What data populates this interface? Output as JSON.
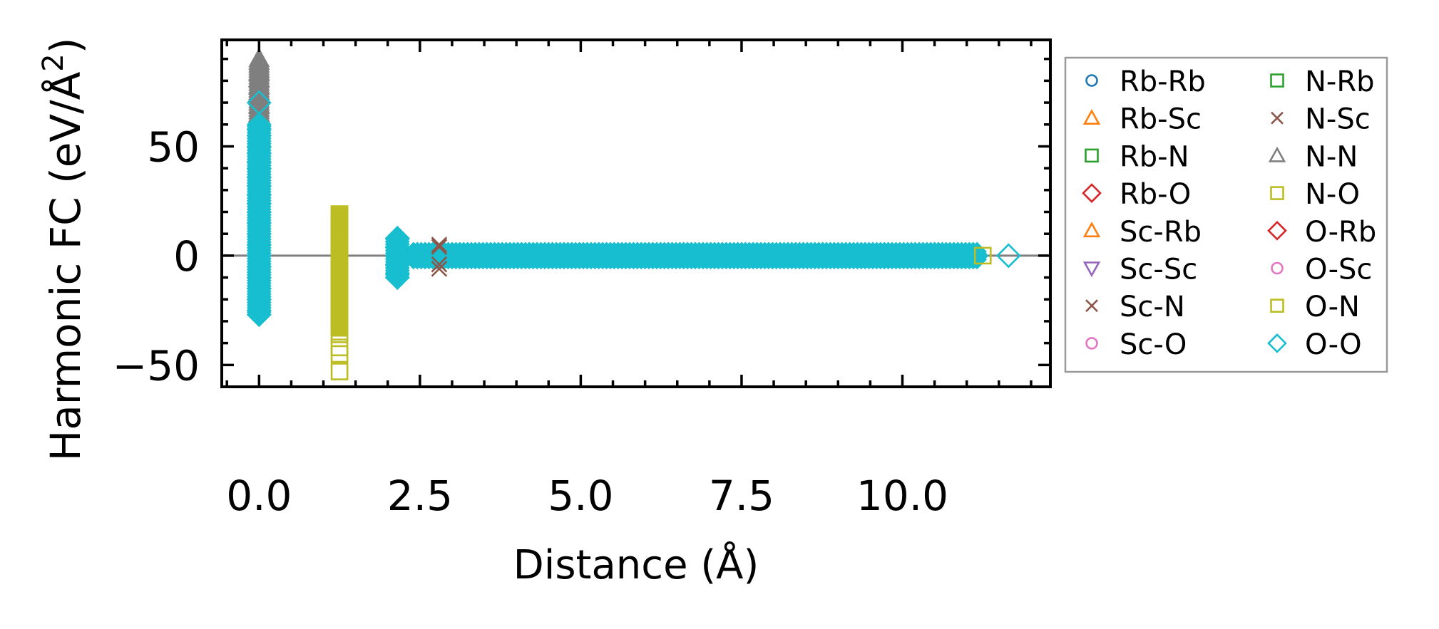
{
  "chart_data": {
    "type": "scatter",
    "title": "",
    "xlabel": "Distance (Å)",
    "ylabel": "Harmonic FC (eV/Å",
    "ylabel_sup": "2",
    "ylabel_close": ")",
    "xlim": [
      -0.58,
      12.3
    ],
    "ylim": [
      -60,
      98.7
    ],
    "xticks": [
      0.0,
      2.5,
      5.0,
      7.5,
      10.0
    ],
    "xtick_labels": [
      "0.0",
      "2.5",
      "5.0",
      "7.5",
      "10.0"
    ],
    "yticks": [
      -50,
      0,
      50
    ],
    "ytick_labels": [
      "−50",
      "0",
      "50"
    ],
    "reference_line_y": 0,
    "legend_position": "outside-right",
    "series": [
      {
        "name": "Rb-Rb",
        "color": "#1f77b4",
        "marker": "circle"
      },
      {
        "name": "Rb-Sc",
        "color": "#ff7f0e",
        "marker": "triangle-up"
      },
      {
        "name": "Rb-N",
        "color": "#2ca02c",
        "marker": "square"
      },
      {
        "name": "Rb-O",
        "color": "#d62728",
        "marker": "diamond"
      },
      {
        "name": "Sc-Rb",
        "color": "#ff7f0e",
        "marker": "triangle-up"
      },
      {
        "name": "Sc-Sc",
        "color": "#9467bd",
        "marker": "triangle-down"
      },
      {
        "name": "Sc-N",
        "color": "#8c564b",
        "marker": "x"
      },
      {
        "name": "Sc-O",
        "color": "#e377c2",
        "marker": "circle"
      },
      {
        "name": "N-Rb",
        "color": "#2ca02c",
        "marker": "square"
      },
      {
        "name": "N-Sc",
        "color": "#8c564b",
        "marker": "x"
      },
      {
        "name": "N-N",
        "color": "#7f7f7f",
        "marker": "triangle-up"
      },
      {
        "name": "N-O",
        "color": "#bcbd22",
        "marker": "square"
      },
      {
        "name": "O-Rb",
        "color": "#d62728",
        "marker": "diamond"
      },
      {
        "name": "O-Sc",
        "color": "#e377c2",
        "marker": "circle"
      },
      {
        "name": "O-N",
        "color": "#bcbd22",
        "marker": "square"
      },
      {
        "name": "O-O",
        "color": "#17becf",
        "marker": "diamond"
      }
    ],
    "points": [
      {
        "series": "N-N",
        "x": 0.0,
        "y": [
          90,
          84,
          81,
          78,
          75,
          69,
          65,
          60,
          46,
          32,
          -20
        ]
      },
      {
        "series": "O-O",
        "x": 0.0,
        "y": [
          70,
          60,
          58,
          55,
          50,
          47,
          43,
          40,
          36,
          32,
          28,
          24,
          20,
          15,
          10,
          5,
          0,
          -5,
          -10,
          -15,
          -20,
          -25,
          -27
        ]
      },
      {
        "series": "N-O",
        "x": 1.25,
        "y": [
          19,
          14,
          10,
          5,
          0,
          -5,
          -10,
          -15,
          -20,
          -25,
          -30,
          -33
        ]
      },
      {
        "series": "O-N",
        "x": 1.25,
        "y": [
          -36,
          -42,
          -45,
          -53
        ]
      },
      {
        "series": "O-O",
        "x": 2.15,
        "y": [
          8,
          4,
          0,
          -4,
          -8,
          -10
        ]
      },
      {
        "series": "Sc-N",
        "x": 2.8,
        "y": [
          5,
          4,
          -4,
          -6
        ]
      },
      {
        "series": "N-O",
        "x": 11.25,
        "y": [
          0
        ]
      },
      {
        "series": "O-O",
        "x": 11.65,
        "y": [
          0
        ]
      }
    ],
    "bands": [
      {
        "series": "O-O",
        "x_range": [
          2.4,
          11.2
        ],
        "y_range": [
          -3,
          3
        ]
      }
    ]
  }
}
